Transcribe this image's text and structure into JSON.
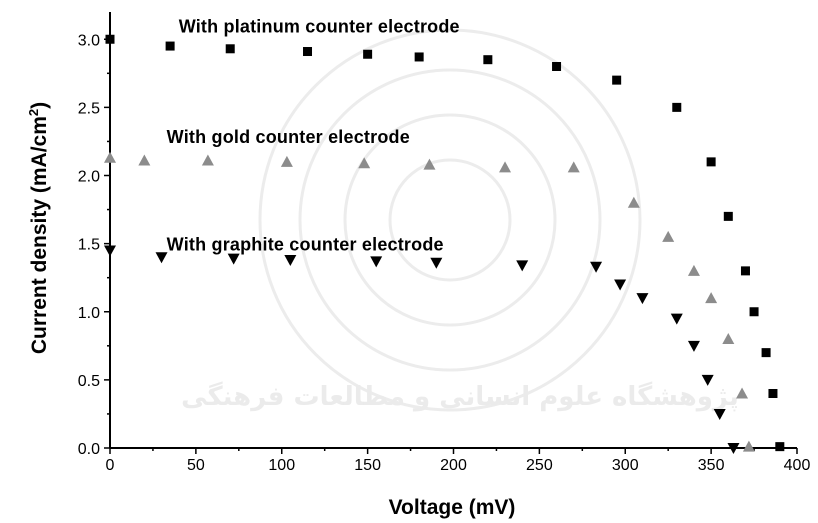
{
  "chart_data": {
    "type": "scatter",
    "title": "",
    "xlabel": "Voltage (mV)",
    "ylabel": "Current density (mA/cm",
    "ylabel_superscript": "2",
    "ylabel_suffix": ")",
    "xlim": [
      0,
      400
    ],
    "ylim": [
      0,
      3.2
    ],
    "x_ticks": [
      "0",
      "50",
      "100",
      "150",
      "200",
      "250",
      "300",
      "350",
      "400"
    ],
    "y_ticks": [
      "0.0",
      "0.5",
      "1.0",
      "1.5",
      "2.0",
      "2.5",
      "3.0"
    ],
    "grid": false,
    "series": [
      {
        "marker": "square",
        "color": "#000000",
        "x": [
          0,
          35,
          70,
          115,
          150,
          180,
          220,
          260,
          295,
          330,
          350,
          360,
          370,
          375,
          382,
          386,
          390
        ],
        "y": [
          3.0,
          2.95,
          2.93,
          2.91,
          2.89,
          2.87,
          2.85,
          2.8,
          2.7,
          2.5,
          2.1,
          1.7,
          1.3,
          1.0,
          0.7,
          0.4,
          0.01
        ]
      },
      {
        "marker": "triangle-up",
        "color": "#8c8c8c",
        "x": [
          0,
          20,
          57,
          103,
          148,
          186,
          230,
          270,
          305,
          325,
          340,
          350,
          360,
          368,
          372
        ],
        "y": [
          2.13,
          2.11,
          2.11,
          2.1,
          2.09,
          2.08,
          2.06,
          2.06,
          1.8,
          1.55,
          1.3,
          1.1,
          0.8,
          0.4,
          0.01
        ]
      },
      {
        "marker": "triangle-down",
        "color": "#000000",
        "x": [
          0,
          30,
          72,
          105,
          155,
          190,
          240,
          283,
          297,
          310,
          330,
          340,
          348,
          355,
          363
        ],
        "y": [
          1.45,
          1.4,
          1.39,
          1.38,
          1.37,
          1.36,
          1.34,
          1.33,
          1.2,
          1.1,
          0.95,
          0.75,
          0.5,
          0.25,
          0.0
        ]
      }
    ],
    "annotations": [
      {
        "text": "With platinum counter electrode",
        "x": 40,
        "y": 3.05
      },
      {
        "text": "With gold counter electrode",
        "x": 33,
        "y": 2.24
      },
      {
        "text": "With graphite counter electrode",
        "x": 33,
        "y": 1.45
      }
    ],
    "watermark_text": "پژوهشگاه علوم انسانی و مطالعات فرهنگی"
  }
}
